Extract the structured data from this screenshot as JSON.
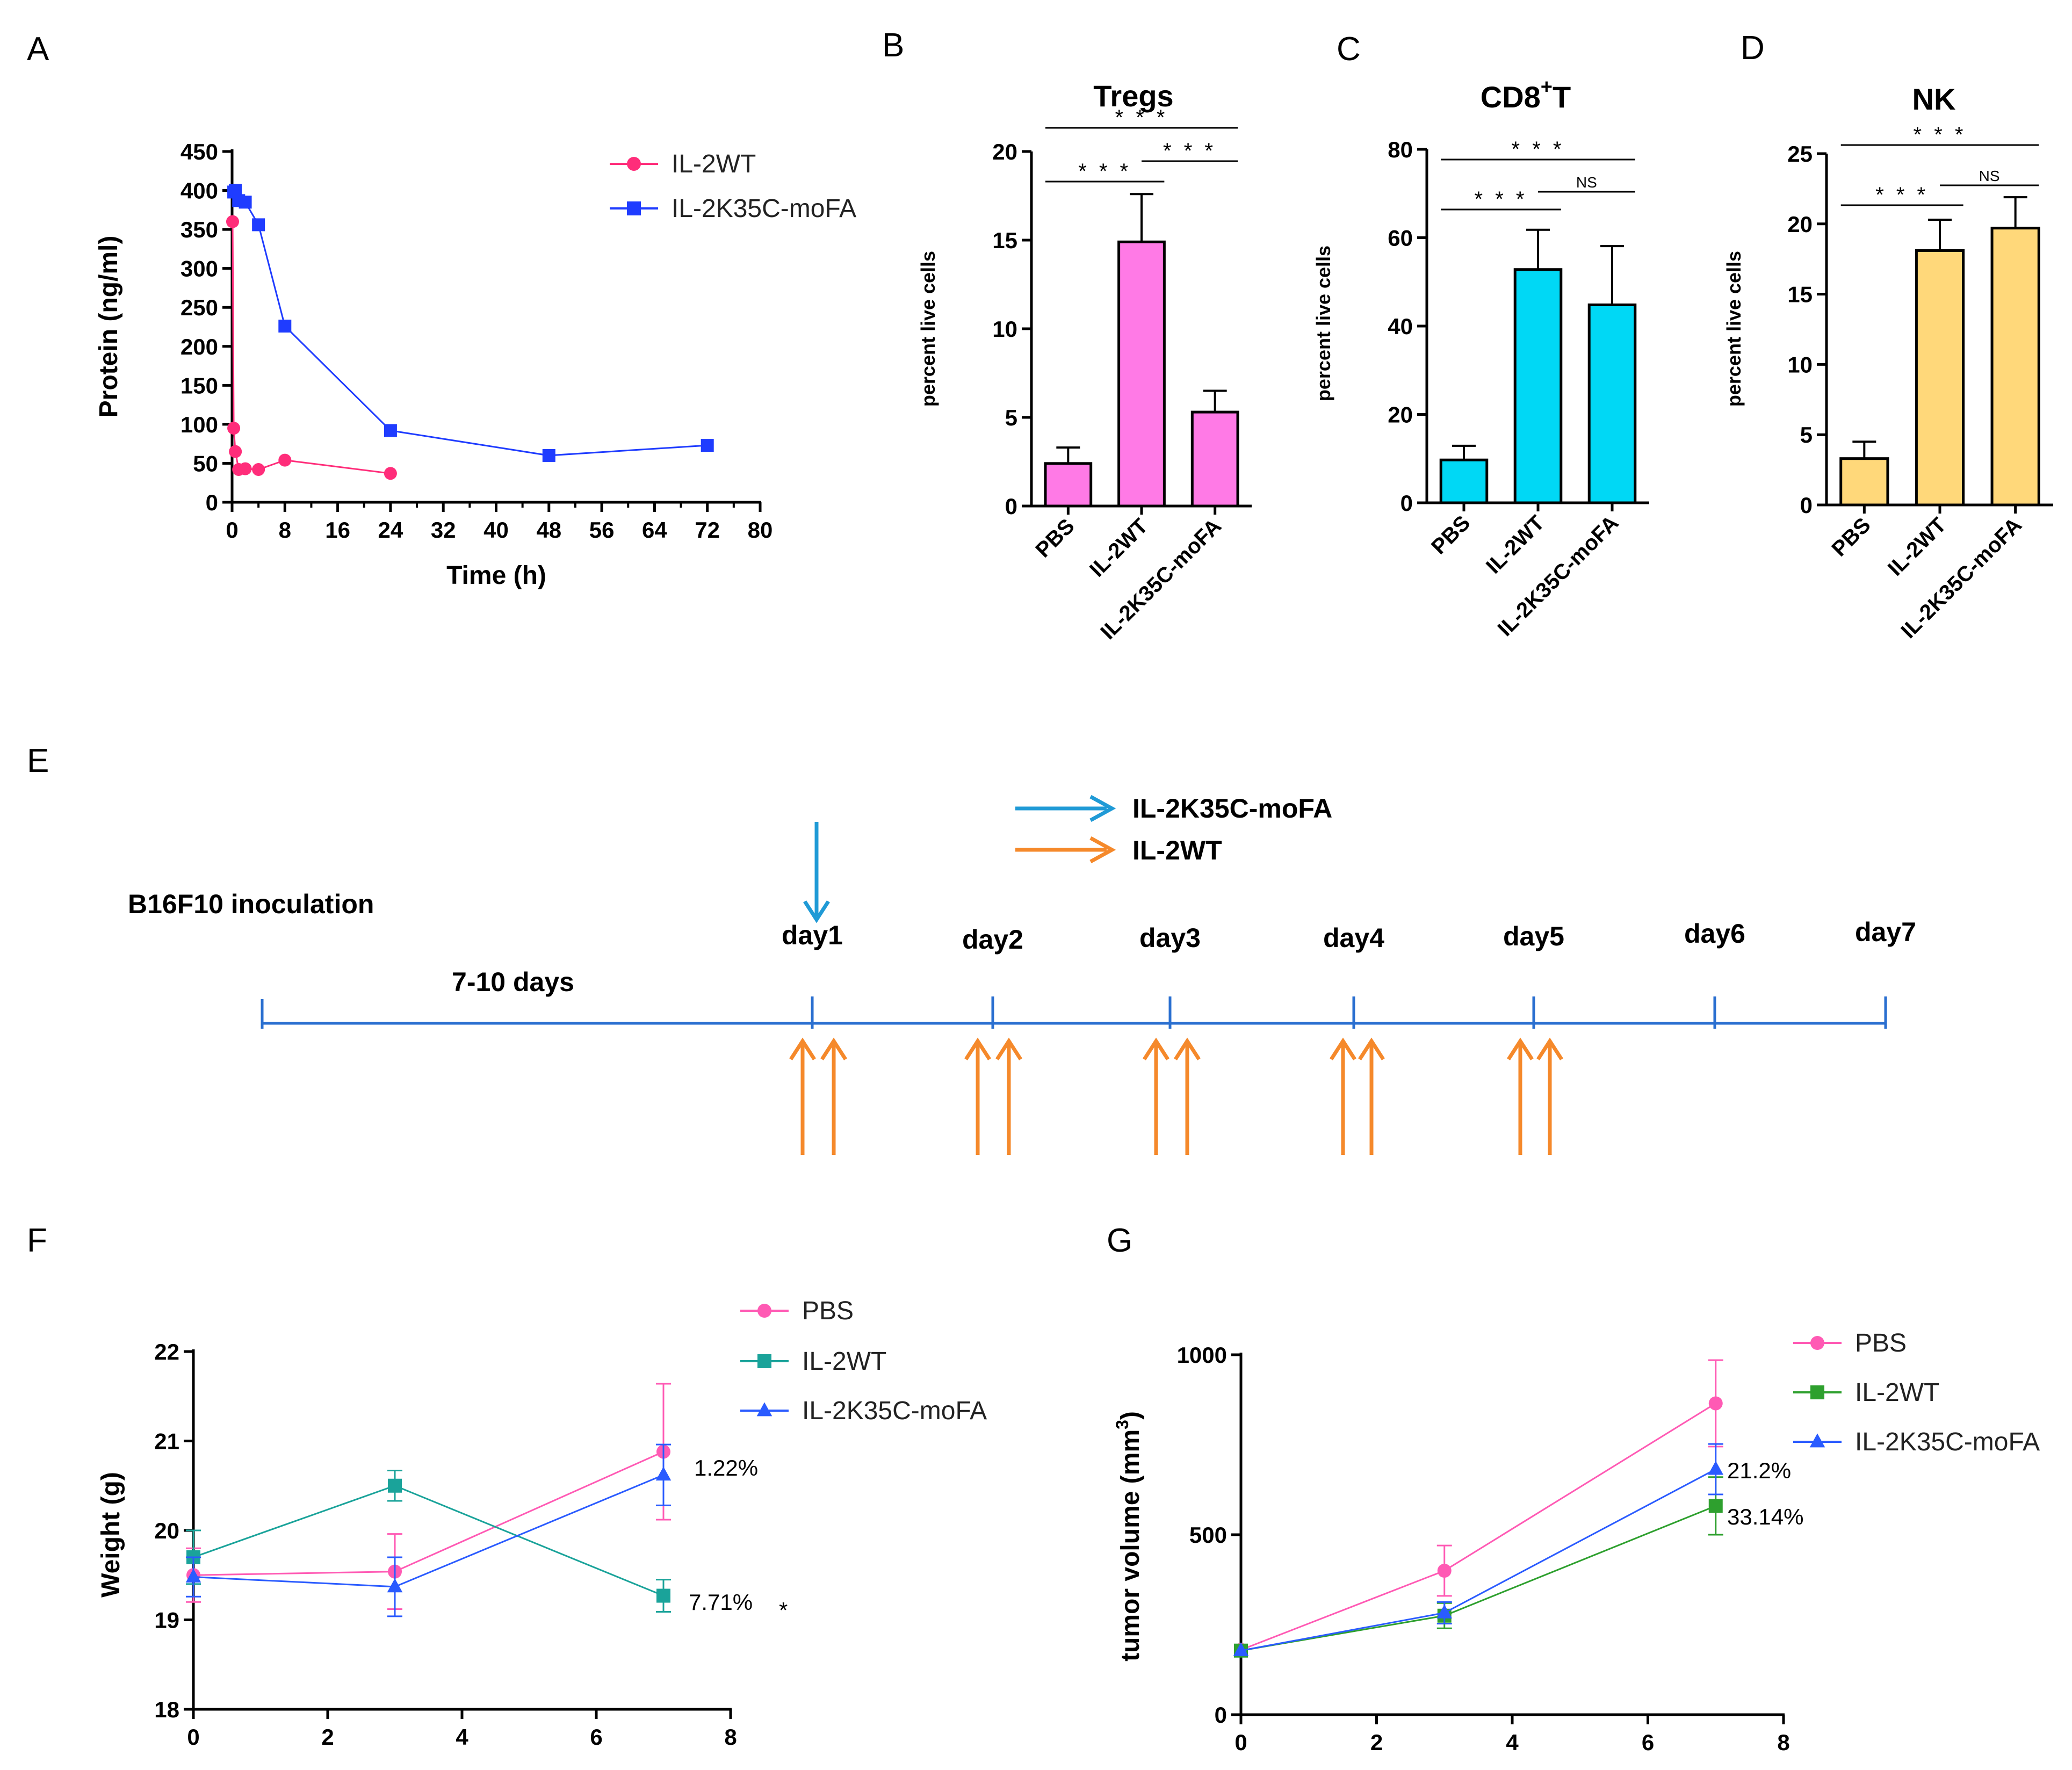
{
  "panels": {
    "A": "A",
    "B": "B",
    "C": "C",
    "D": "D",
    "E": "E",
    "F": "F",
    "G": "G"
  },
  "colors": {
    "pink": "#ff2d7a",
    "pink_light": "#ff5ab4",
    "blue": "#1f3cff",
    "blue_mid": "#2a5bff",
    "teal": "#1aa39a",
    "green": "#2ea02e",
    "bar_pink": "#ff7ae6",
    "bar_cyan": "#00d8f5",
    "bar_yellow": "#ffd87a",
    "timeline_blue": "#2a6fd0",
    "arrow_orange": "#f5892b",
    "arrow_blue": "#1f9ad6"
  },
  "chart_data": [
    {
      "id": "A",
      "type": "line",
      "title": "",
      "xlabel": "Time (h)",
      "ylabel": "Protein (ng/ml)",
      "xlim": [
        0,
        80
      ],
      "ylim": [
        0,
        450
      ],
      "xticks": [
        0,
        8,
        16,
        24,
        32,
        40,
        48,
        56,
        64,
        72,
        80
      ],
      "yticks": [
        0,
        50,
        100,
        150,
        200,
        250,
        300,
        350,
        400,
        450
      ],
      "legend": [
        "IL-2WT",
        "IL-2K35C-moFA"
      ],
      "series": [
        {
          "name": "IL-2WT",
          "marker": "circle",
          "x": [
            0.08,
            0.25,
            0.5,
            1,
            2,
            4,
            8,
            24
          ],
          "y": [
            360,
            95,
            65,
            42,
            43,
            42,
            54,
            37
          ]
        },
        {
          "name": "IL-2K35C-moFA",
          "marker": "square",
          "x": [
            0.25,
            0.5,
            1,
            2,
            4,
            8,
            24,
            48,
            72
          ],
          "y": [
            398,
            400,
            387,
            385,
            356,
            226,
            92,
            60,
            73
          ]
        }
      ]
    },
    {
      "id": "B",
      "type": "bar",
      "title": "Tregs",
      "ylabel": "percent live cells",
      "categories": [
        "PBS",
        "IL-2WT",
        "IL-2K35C-moFA"
      ],
      "values": [
        2.4,
        14.9,
        5.3
      ],
      "errors": [
        0.9,
        2.7,
        1.2
      ],
      "ylim": [
        0,
        20
      ],
      "yticks": [
        0,
        5,
        10,
        15,
        20
      ],
      "significance": [
        {
          "from": 0,
          "to": 1,
          "label": "* * *"
        },
        {
          "from": 1,
          "to": 2,
          "label": "* * *"
        },
        {
          "from": 0,
          "to": 2,
          "label": "* * *"
        }
      ]
    },
    {
      "id": "C",
      "type": "bar",
      "title_main": "CD8",
      "title_sup": "+",
      "title_tail": "T",
      "ylabel": "percent live cells",
      "categories": [
        "PBS",
        "IL-2WT",
        "IL-2K35C-moFA"
      ],
      "values": [
        9.7,
        52.8,
        44.8
      ],
      "errors": [
        3.2,
        9.0,
        13.3
      ],
      "ylim": [
        0,
        80
      ],
      "yticks": [
        0,
        20,
        40,
        60,
        80
      ],
      "significance": [
        {
          "from": 0,
          "to": 1,
          "label": "* * *"
        },
        {
          "from": 1,
          "to": 2,
          "label": "NS"
        },
        {
          "from": 0,
          "to": 2,
          "label": "* * *"
        }
      ]
    },
    {
      "id": "D",
      "type": "bar",
      "title": "NK",
      "ylabel": "percent live cells",
      "categories": [
        "PBS",
        "IL-2WT",
        "IL-2K35C-moFA"
      ],
      "values": [
        3.3,
        18.1,
        19.7
      ],
      "errors": [
        1.2,
        2.2,
        2.2
      ],
      "ylim": [
        0,
        25
      ],
      "yticks": [
        0,
        5,
        10,
        15,
        20,
        25
      ],
      "significance": [
        {
          "from": 0,
          "to": 1,
          "label": "* * *"
        },
        {
          "from": 1,
          "to": 2,
          "label": "NS"
        },
        {
          "from": 0,
          "to": 2,
          "label": "* * *"
        }
      ]
    },
    {
      "id": "F",
      "type": "line",
      "xlabel": "",
      "ylabel": "Weight (g)",
      "xlim": [
        0,
        8
      ],
      "ylim": [
        18,
        22
      ],
      "xticks": [
        0,
        2,
        4,
        6,
        8
      ],
      "yticks": [
        18,
        19,
        20,
        21,
        22
      ],
      "legend": [
        "PBS",
        "IL-2WT",
        "IL-2K35C-moFA"
      ],
      "series": [
        {
          "name": "PBS",
          "marker": "circle",
          "x": [
            0,
            3,
            7
          ],
          "y": [
            19.5,
            19.54,
            20.88
          ],
          "err": [
            0.3,
            0.42,
            0.76
          ]
        },
        {
          "name": "IL-2WT",
          "marker": "square",
          "x": [
            0,
            3,
            7
          ],
          "y": [
            19.7,
            20.5,
            19.27
          ],
          "err": [
            0.3,
            0.17,
            0.18
          ]
        },
        {
          "name": "IL-2K35C-moFA",
          "marker": "triangle",
          "x": [
            0,
            3,
            7
          ],
          "y": [
            19.48,
            19.37,
            20.62
          ],
          "err": [
            0.22,
            0.33,
            0.34
          ]
        }
      ],
      "annotations": [
        "1.22%",
        "7.71%",
        "*"
      ]
    },
    {
      "id": "G",
      "type": "line",
      "xlabel": "",
      "ylabel": "tumor volume （mm³)",
      "ylabel_main": "tumor volume  (mm",
      "ylabel_sup": "3",
      "ylabel_tail": ")",
      "xlim": [
        0,
        8
      ],
      "ylim": [
        0,
        1000
      ],
      "xticks": [
        0,
        2,
        4,
        6,
        8
      ],
      "yticks": [
        0,
        500,
        1000
      ],
      "legend": [
        "PBS",
        "IL-2WT",
        "IL-2K35C-moFA"
      ],
      "series": [
        {
          "name": "PBS",
          "marker": "circle",
          "x": [
            0,
            3,
            7
          ],
          "y": [
            180,
            400,
            865
          ],
          "err": [
            0,
            70,
            120
          ]
        },
        {
          "name": "IL-2WT",
          "marker": "square",
          "x": [
            0,
            3,
            7
          ],
          "y": [
            178,
            275,
            580
          ],
          "err": [
            0,
            35,
            80
          ]
        },
        {
          "name": "IL-2K35C-moFA",
          "marker": "triangle",
          "x": [
            0,
            3,
            7
          ],
          "y": [
            178,
            283,
            682
          ],
          "err": [
            0,
            30,
            70
          ]
        }
      ],
      "annotations": [
        "21.2%",
        "33.14%"
      ]
    }
  ],
  "timeline": {
    "legend_blue": "IL-2K35C-moFA",
    "legend_orange": "IL-2WT",
    "inoculation": "B16F10 inoculation",
    "interval": "7-10 days",
    "days": [
      "day1",
      "day2",
      "day3",
      "day4",
      "day5",
      "day6",
      "day7"
    ]
  }
}
